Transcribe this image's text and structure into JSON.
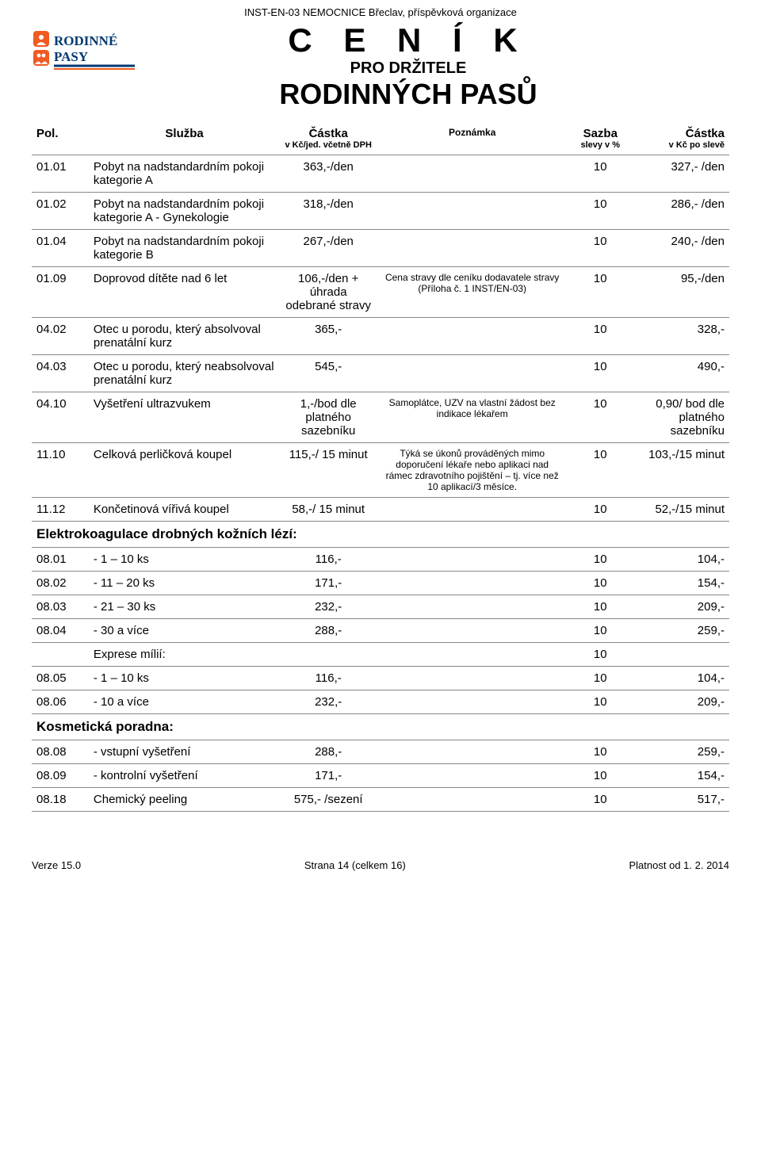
{
  "doc_header": "INST-EN-03 NEMOCNICE Břeclav, příspěvková organizace",
  "logo_top": "RODINNÉ",
  "logo_bottom": "PASY",
  "logo_accent": "#f15a22",
  "logo_line": "#003a70",
  "title1": "C E N Í K",
  "title2": "PRO DRŽITELE",
  "title3": "RODINNÝCH PASŮ",
  "columns": {
    "pol": "Pol.",
    "sluzba": "Služba",
    "castka": "Částka",
    "castka_sub": "v Kč/jed. včetně DPH",
    "poznamka": "Poznámka",
    "sazba": "Sazba",
    "sazba_sub": "slevy v %",
    "sleva": "Částka",
    "sleva_sub": "v Kč po slevě"
  },
  "rows": [
    {
      "pol": "01.01",
      "sluzba": "Pobyt na nadstandardním pokoji kategorie A",
      "castka": "363,-/den",
      "pozn": "",
      "sazba": "10",
      "sleva": "327,- /den"
    },
    {
      "pol": "01.02",
      "sluzba": "Pobyt na nadstandardním pokoji kategorie A - Gynekologie",
      "castka": "318,-/den",
      "pozn": "",
      "sazba": "10",
      "sleva": "286,- /den"
    },
    {
      "pol": "01.04",
      "sluzba": "Pobyt na nadstandardním pokoji kategorie B",
      "castka": "267,-/den",
      "pozn": "",
      "sazba": "10",
      "sleva": "240,- /den"
    },
    {
      "pol": "01.09",
      "sluzba": "Doprovod dítěte nad 6 let",
      "castka": "106,-/den + úhrada odebrané stravy",
      "pozn": "Cena stravy dle ceníku dodavatele stravy (Příloha č. 1 INST/EN-03)",
      "sazba": "10",
      "sleva": "95,-/den"
    },
    {
      "pol": "04.02",
      "sluzba": "Otec u porodu, který absolvoval prenatální kurz",
      "castka": "365,-",
      "pozn": "",
      "sazba": "10",
      "sleva": "328,-"
    },
    {
      "pol": "04.03",
      "sluzba": "Otec u porodu, který neabsolvoval prenatální kurz",
      "castka": "545,-",
      "pozn": "",
      "sazba": "10",
      "sleva": "490,-"
    },
    {
      "pol": "04.10",
      "sluzba": "Vyšetření ultrazvukem",
      "castka": "1,-/bod dle platného sazebníku",
      "pozn": "Samoplátce, UZV na vlastní žádost bez indikace lékařem",
      "sazba": "10",
      "sleva": "0,90/ bod dle platného sazebníku"
    },
    {
      "pol": "11.10",
      "sluzba": "Celková perličková koupel",
      "castka": "115,-/ 15 minut",
      "pozn": "Týká se úkonů prováděných mimo doporučení lékaře nebo aplikaci nad rámec zdravotního pojištění – tj. více než 10 aplikací/3 měsíce.",
      "sazba": "10",
      "sleva": "103,-/15 minut"
    },
    {
      "pol": "11.12",
      "sluzba": "Končetinová vířivá koupel",
      "castka": "58,-/ 15 minut",
      "pozn": "",
      "sazba": "10",
      "sleva": "52,-/15 minut"
    }
  ],
  "section1": "Elektrokoagulace drobných kožních lézí:",
  "rows2": [
    {
      "pol": "08.01",
      "sluzba": "- 1 – 10 ks",
      "castka": "116,-",
      "pozn": "",
      "sazba": "10",
      "sleva": "104,-"
    },
    {
      "pol": "08.02",
      "sluzba": "- 11 – 20 ks",
      "castka": "171,-",
      "pozn": "",
      "sazba": "10",
      "sleva": "154,-"
    },
    {
      "pol": "08.03",
      "sluzba": "- 21 – 30 ks",
      "castka": "232,-",
      "pozn": "",
      "sazba": "10",
      "sleva": "209,-"
    },
    {
      "pol": "08.04",
      "sluzba": "- 30 a více",
      "castka": "288,-",
      "pozn": "",
      "sazba": "10",
      "sleva": "259,-"
    },
    {
      "pol": "",
      "sluzba": "Exprese mílií:",
      "castka": "",
      "pozn": "",
      "sazba": "10",
      "sleva": ""
    },
    {
      "pol": "08.05",
      "sluzba": "- 1 – 10 ks",
      "castka": "116,-",
      "pozn": "",
      "sazba": "10",
      "sleva": "104,-"
    },
    {
      "pol": "08.06",
      "sluzba": "- 10 a více",
      "castka": "232,-",
      "pozn": "",
      "sazba": "10",
      "sleva": "209,-"
    }
  ],
  "section2": "Kosmetická poradna:",
  "rows3": [
    {
      "pol": "08.08",
      "sluzba": "- vstupní vyšetření",
      "castka": "288,-",
      "pozn": "",
      "sazba": "10",
      "sleva": "259,-"
    },
    {
      "pol": "08.09",
      "sluzba": "- kontrolní vyšetření",
      "castka": "171,-",
      "pozn": "",
      "sazba": "10",
      "sleva": "154,-"
    },
    {
      "pol": "08.18",
      "sluzba": "Chemický peeling",
      "castka": "575,- /sezení",
      "pozn": "",
      "sazba": "10",
      "sleva": "517,-"
    }
  ],
  "footer": {
    "left": "Verze 15.0",
    "center": "Strana 14 (celkem 16)",
    "right": "Platnost od 1. 2. 2014"
  }
}
